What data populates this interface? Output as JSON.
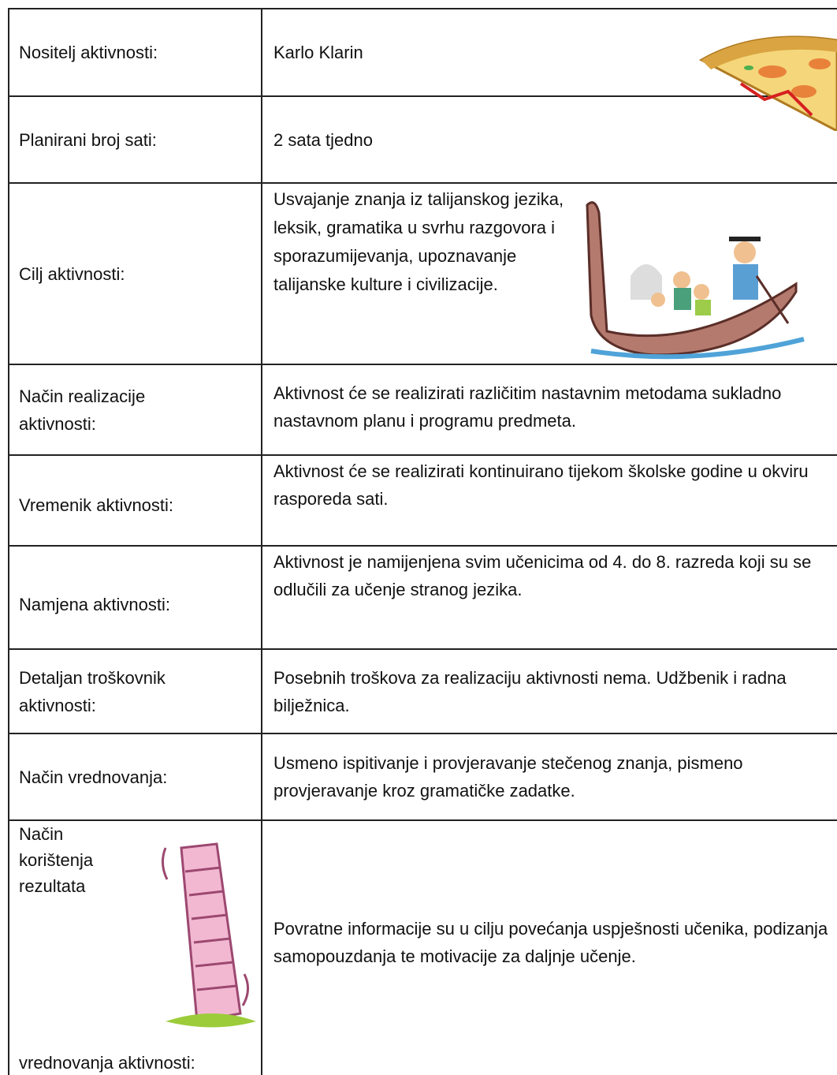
{
  "table": {
    "rows": [
      {
        "label": "Nositelj aktivnosti:",
        "value": "Karlo Klarin"
      },
      {
        "label": "Planirani broj sati:",
        "value": "2 sata tjedno"
      },
      {
        "label": "Cilj aktivnosti:",
        "value": "Usvajanje znanja iz talijanskog jezika, leksik, gramatika u svrhu razgovora i sporazumijevanja, upoznavanje talijanske kulture i civilizacije."
      },
      {
        "label": "Način realizacije aktivnosti:",
        "value": "Aktivnost će se realizirati različitim nastavnim metodama sukladno nastavnom planu i programu predmeta."
      },
      {
        "label": "Vremenik aktivnosti:",
        "value": "Aktivnost će se realizirati kontinuirano tijekom školske godine u okviru rasporeda sati."
      },
      {
        "label": "Namjena aktivnosti:",
        "value": "Aktivnost je namijenjena  svim učenicima od 4. do 8. razreda koji su se odlučili za učenje stranog jezika."
      },
      {
        "label": "Detaljan troškovnik aktivnosti:",
        "value": "Posebnih troškova za realizaciju aktivnosti nema. Udžbenik i radna bilježnica."
      },
      {
        "label": "Način vrednovanja:",
        "value": "Usmeno ispitivanje i provjeravanje stečenog znanja, pismeno provjeravanje kroz gramatičke zadatke."
      },
      {
        "label_top": "Način korištenja rezultata",
        "label_bottom": "vrednovanja aktivnosti:",
        "value": "Povratne informacije su u cilju povećanja uspješnosti učenika, podizanja samopouzdanja te motivacije za daljnje učenje."
      }
    ]
  }
}
